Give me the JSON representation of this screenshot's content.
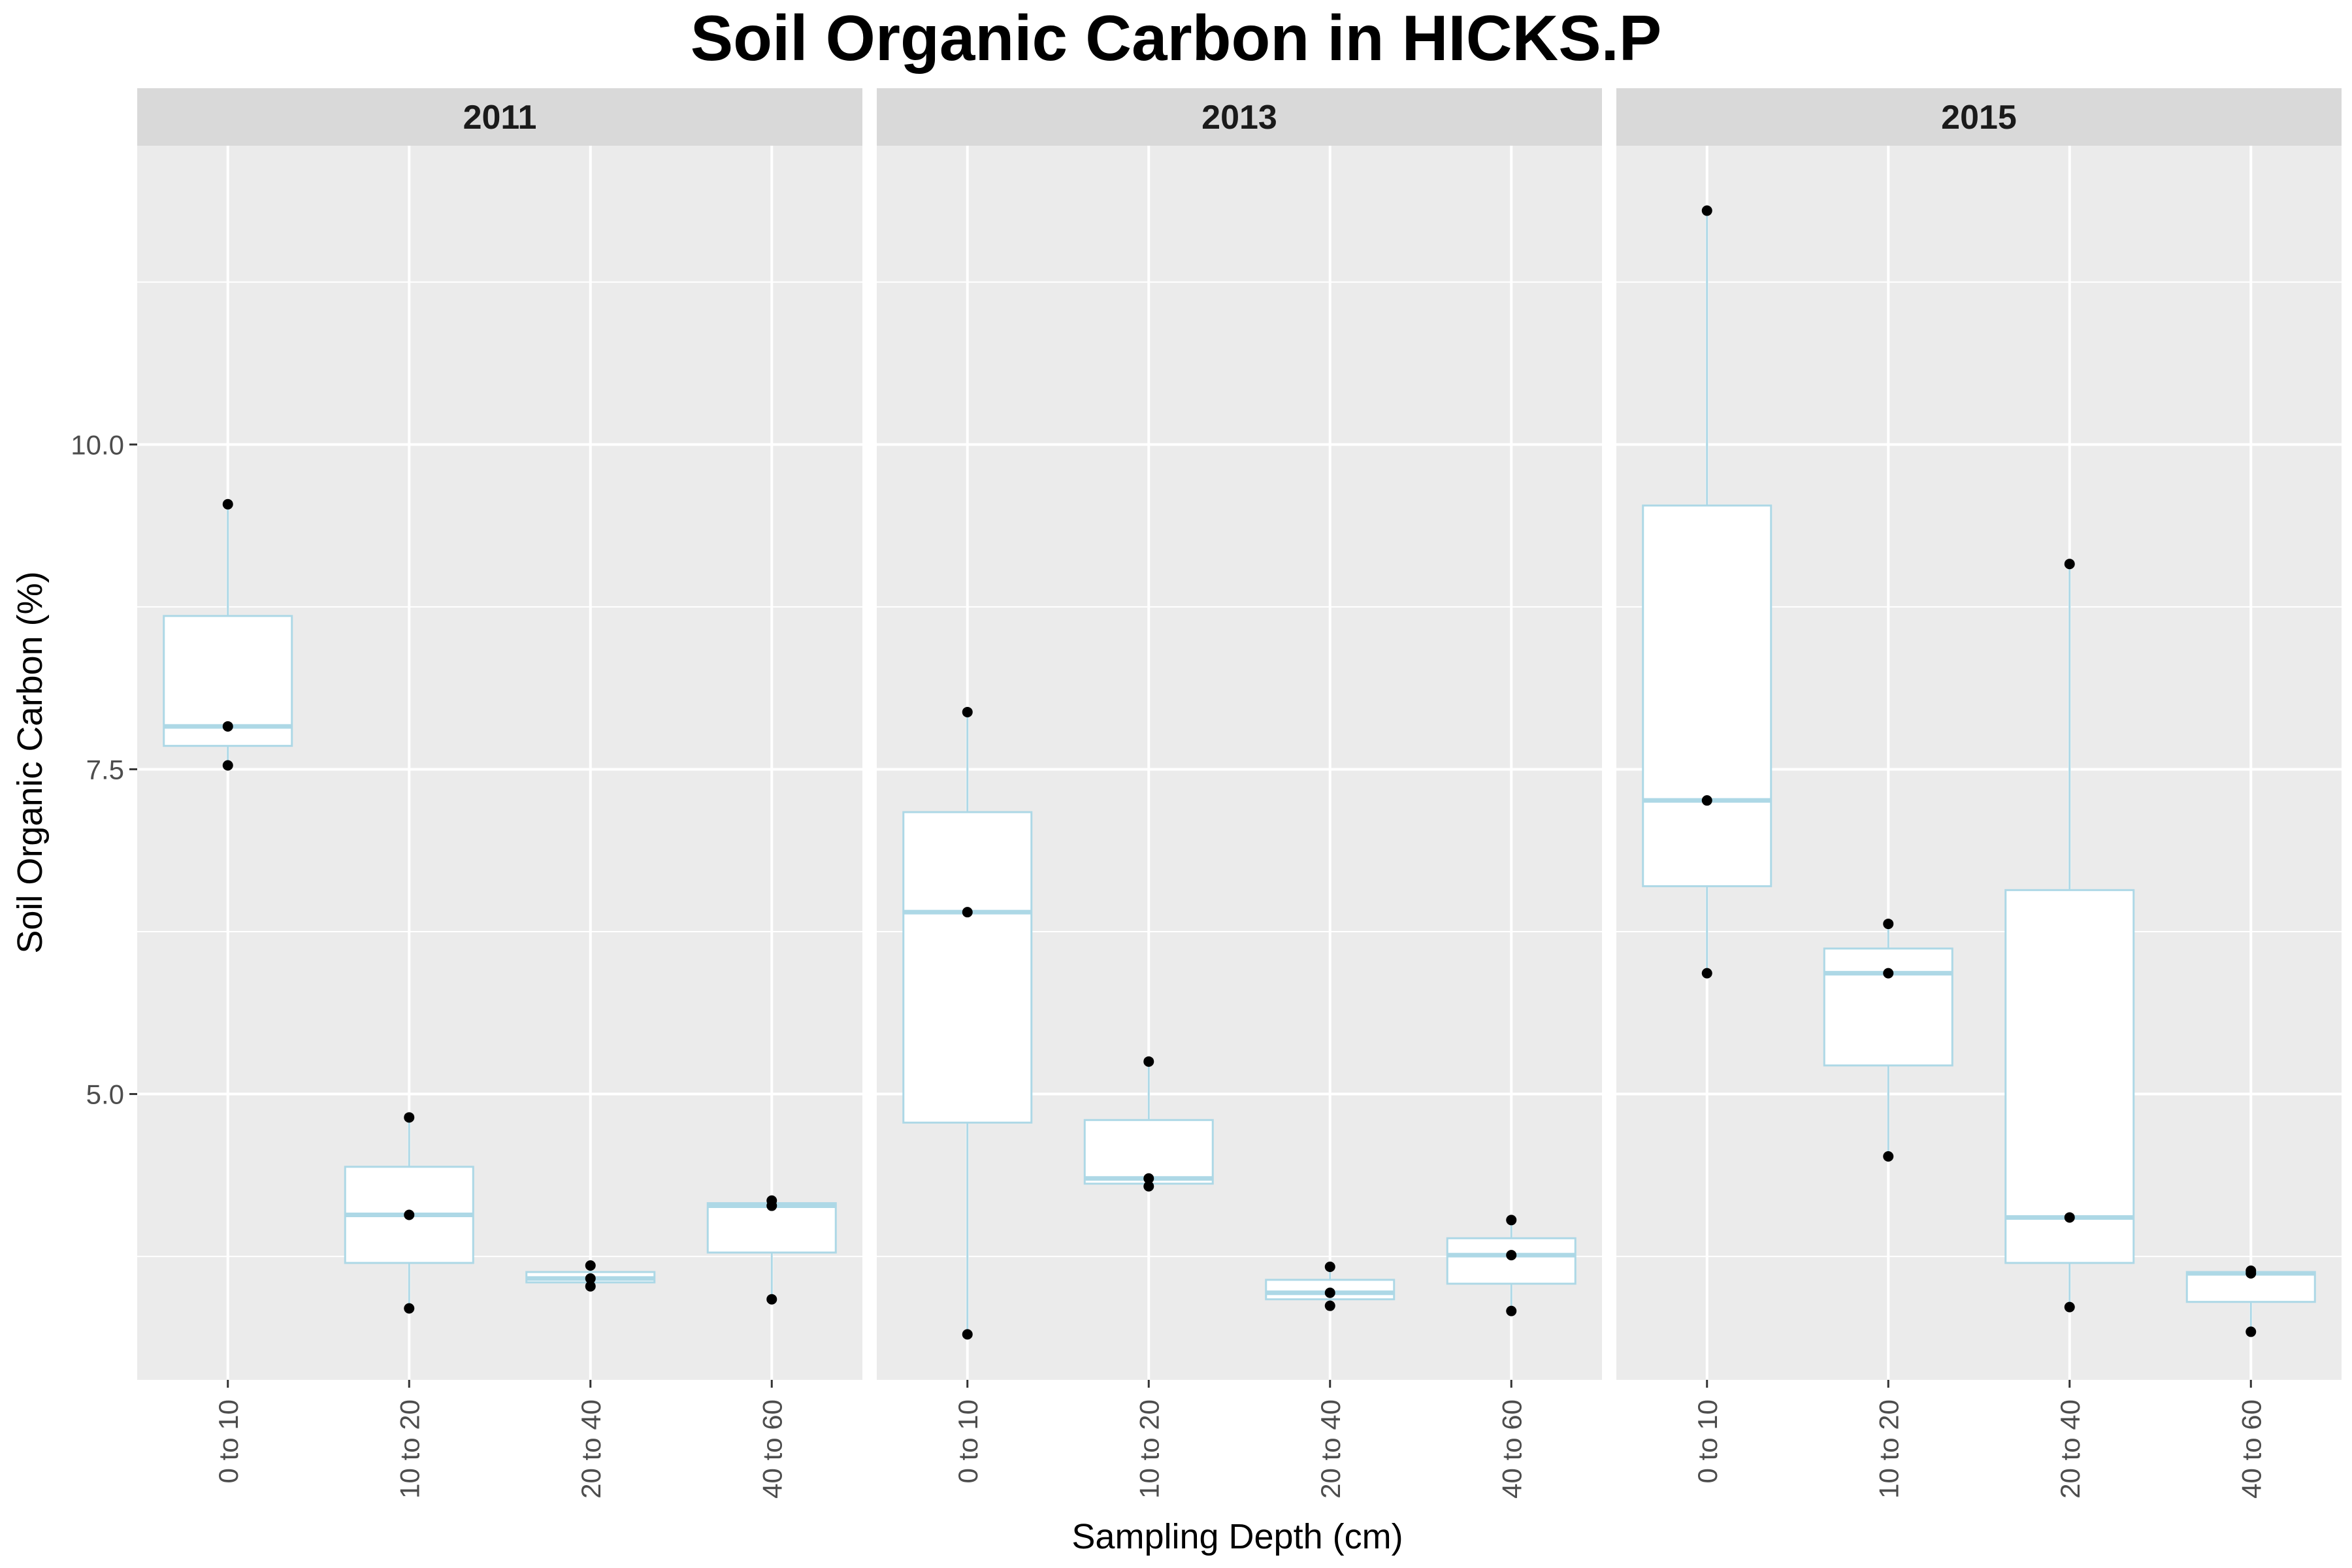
{
  "chart_data": {
    "type": "boxplot",
    "title": "Soil Organic Carbon in HICKS.P",
    "xlabel": "Sampling Depth (cm)",
    "ylabel": "Soil Organic Carbon (%)",
    "ylim": [
      2.8,
      12.3
    ],
    "yticks": [
      5.0,
      7.5,
      10.0
    ],
    "ytick_labels": [
      "5.0",
      "7.5",
      "10.0"
    ],
    "categories": [
      "0 to 10",
      "10 to 20",
      "20 to 40",
      "40 to 60"
    ],
    "grid": true,
    "colors": {
      "panel_bg": "#ebebeb",
      "strip_bg": "#d9d9d9",
      "grid": "#ffffff",
      "box_line": "#add8e6",
      "box_fill": "#ffffff",
      "point": "#000000"
    },
    "facets": [
      {
        "label": "2011",
        "boxes": [
          {
            "category": "0 to 10",
            "min": 7.53,
            "q1": 7.68,
            "median": 7.83,
            "q3": 8.68,
            "max": 9.54,
            "points": [
              9.54,
              7.83,
              7.53
            ]
          },
          {
            "category": "10 to 20",
            "min": 3.35,
            "q1": 3.7,
            "median": 4.07,
            "q3": 4.44,
            "max": 4.82,
            "points": [
              4.82,
              4.07,
              3.35
            ]
          },
          {
            "category": "20 to 40",
            "min": 3.52,
            "q1": 3.55,
            "median": 3.58,
            "q3": 3.63,
            "max": 3.68,
            "points": [
              3.68,
              3.58,
              3.52
            ]
          },
          {
            "category": "40 to 60",
            "min": 3.42,
            "q1": 3.78,
            "median": 4.14,
            "q3": 4.16,
            "max": 4.18,
            "points": [
              4.18,
              4.14,
              3.42
            ]
          }
        ]
      },
      {
        "label": "2013",
        "boxes": [
          {
            "category": "0 to 10",
            "min": 3.15,
            "q1": 4.78,
            "median": 6.4,
            "q3": 7.17,
            "max": 7.94,
            "points": [
              7.94,
              6.4,
              3.15
            ]
          },
          {
            "category": "10 to 20",
            "min": 4.29,
            "q1": 4.31,
            "median": 4.35,
            "q3": 4.8,
            "max": 5.25,
            "points": [
              5.25,
              4.35,
              4.29
            ]
          },
          {
            "category": "20 to 40",
            "min": 3.37,
            "q1": 3.42,
            "median": 3.47,
            "q3": 3.57,
            "max": 3.67,
            "points": [
              3.67,
              3.47,
              3.37
            ]
          },
          {
            "category": "40 to 60",
            "min": 3.33,
            "q1": 3.54,
            "median": 3.76,
            "q3": 3.89,
            "max": 4.03,
            "points": [
              4.03,
              3.76,
              3.33
            ]
          }
        ]
      },
      {
        "label": "2015",
        "boxes": [
          {
            "category": "0 to 10",
            "min": 5.93,
            "q1": 6.6,
            "median": 7.26,
            "q3": 9.53,
            "max": 11.8,
            "points": [
              11.8,
              7.26,
              5.93
            ]
          },
          {
            "category": "10 to 20",
            "min": 4.52,
            "q1": 5.22,
            "median": 5.93,
            "q3": 6.12,
            "max": 6.31,
            "points": [
              6.31,
              5.93,
              4.52
            ]
          },
          {
            "category": "20 to 40",
            "min": 3.36,
            "q1": 3.7,
            "median": 4.05,
            "q3": 6.57,
            "max": 9.08,
            "points": [
              9.08,
              4.05,
              3.36
            ]
          },
          {
            "category": "40 to 60",
            "min": 3.17,
            "q1": 3.4,
            "median": 3.62,
            "q3": 3.63,
            "max": 3.64,
            "points": [
              3.64,
              3.62,
              3.17
            ]
          }
        ]
      }
    ]
  }
}
